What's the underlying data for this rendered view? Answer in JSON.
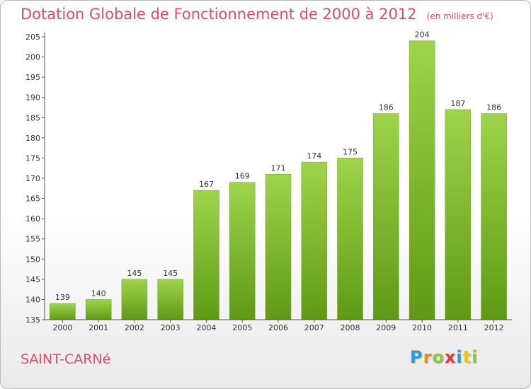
{
  "chart_data": {
    "type": "bar",
    "title": "Dotation Globale de Fonctionnement de 2000 à 2012",
    "subtitle": "(en milliers d'€)",
    "categories": [
      "2000",
      "2001",
      "2002",
      "2003",
      "2004",
      "2005",
      "2006",
      "2007",
      "2008",
      "2009",
      "2010",
      "2011",
      "2012"
    ],
    "values": [
      139,
      140,
      145,
      145,
      167,
      169,
      171,
      174,
      175,
      186,
      204,
      187,
      186
    ],
    "ylim": [
      135,
      205
    ],
    "yticks": [
      135,
      140,
      145,
      150,
      155,
      160,
      165,
      170,
      175,
      180,
      185,
      190,
      195,
      200,
      205
    ],
    "xlabel": "",
    "ylabel": "",
    "grid": false,
    "bar_color": "#7fba2a",
    "bar_color_light": "#9fd44a",
    "bar_color_dark": "#5f9a14"
  },
  "footer": {
    "commune": "SAINT-CARNé",
    "brand_letters": [
      "P",
      "r",
      "o",
      "x",
      "i",
      "t",
      "i"
    ],
    "brand_colors": [
      "#2b9ad6",
      "#f08a1c",
      "#8cc63e",
      "#e23a3a",
      "#2b9ad6",
      "#f0c419",
      "#8cc63e"
    ]
  },
  "colors": {
    "title": "#df4a6e",
    "axis": "#555555"
  }
}
